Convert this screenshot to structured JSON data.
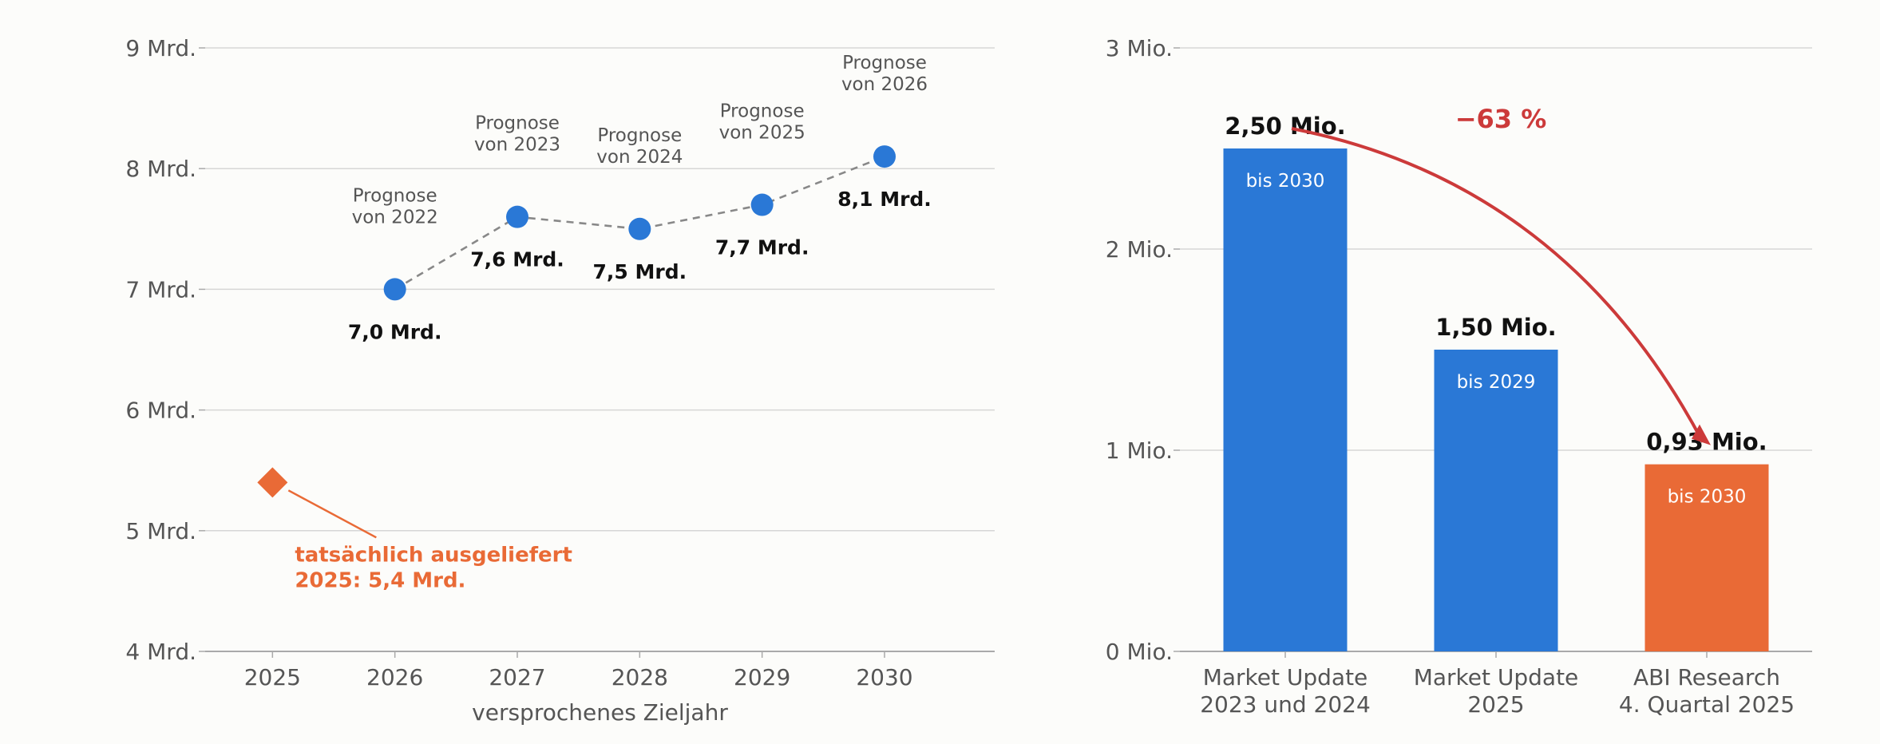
{
  "chart_data": [
    {
      "type": "scatter",
      "xlabel": "versprochenes Zieljahr",
      "ylim": [
        4,
        9
      ],
      "y_ticks": [
        "4 Mrd.",
        "5 Mrd.",
        "6 Mrd.",
        "7 Mrd.",
        "8 Mrd.",
        "9 Mrd."
      ],
      "x_ticks": [
        "2025",
        "2026",
        "2027",
        "2028",
        "2029",
        "2030"
      ],
      "x_range": [
        2024.45,
        2030.9
      ],
      "grid": true,
      "series": [
        {
          "points": [
            {
              "x": 2026,
              "y": 7.0,
              "label": "7,0 Mrd.",
              "note": [
                "Prognose",
                "von 2022"
              ]
            },
            {
              "x": 2027,
              "y": 7.6,
              "label": "7,6 Mrd.",
              "note": [
                "Prognose",
                "von 2023"
              ]
            },
            {
              "x": 2028,
              "y": 7.5,
              "label": "7,5 Mrd.",
              "note": [
                "Prognose",
                "von 2024"
              ]
            },
            {
              "x": 2029,
              "y": 7.7,
              "label": "7,7 Mrd.",
              "note": [
                "Prognose",
                "von 2025"
              ]
            },
            {
              "x": 2030,
              "y": 8.1,
              "label": "8,1 Mrd.",
              "note": [
                "Prognose",
                "von 2026"
              ]
            }
          ]
        },
        {
          "points": [
            {
              "x": 2025,
              "y": 5.4
            }
          ],
          "annotation": [
            "tatsächlich ausgeliefert",
            "2025: 5,4 Mrd."
          ]
        }
      ],
      "colors": {
        "forecast": "#2a78d6",
        "actual": "#e96a36",
        "connector": "#888888"
      }
    },
    {
      "type": "bar",
      "categories": [
        [
          "Market Update",
          "2023 und 2024"
        ],
        [
          "Market Update",
          "2025"
        ],
        [
          "ABI Research",
          "4. Quartal 2025"
        ]
      ],
      "values": [
        2.5,
        1.5,
        0.93
      ],
      "value_labels": [
        "2,50 Mio.",
        "1,50 Mio.",
        "0,93 Mio."
      ],
      "inner_labels": [
        "bis 2030",
        "bis 2029",
        "bis 2030"
      ],
      "bar_colors": [
        "#2a78d6",
        "#2a78d6",
        "#e96a36"
      ],
      "ylim": [
        0,
        3
      ],
      "y_ticks": [
        "0 Mio.",
        "1 Mio.",
        "2 Mio.",
        "3 Mio."
      ],
      "change_label": "−63 %",
      "change_color": "#cc3a3a",
      "grid": true
    }
  ]
}
